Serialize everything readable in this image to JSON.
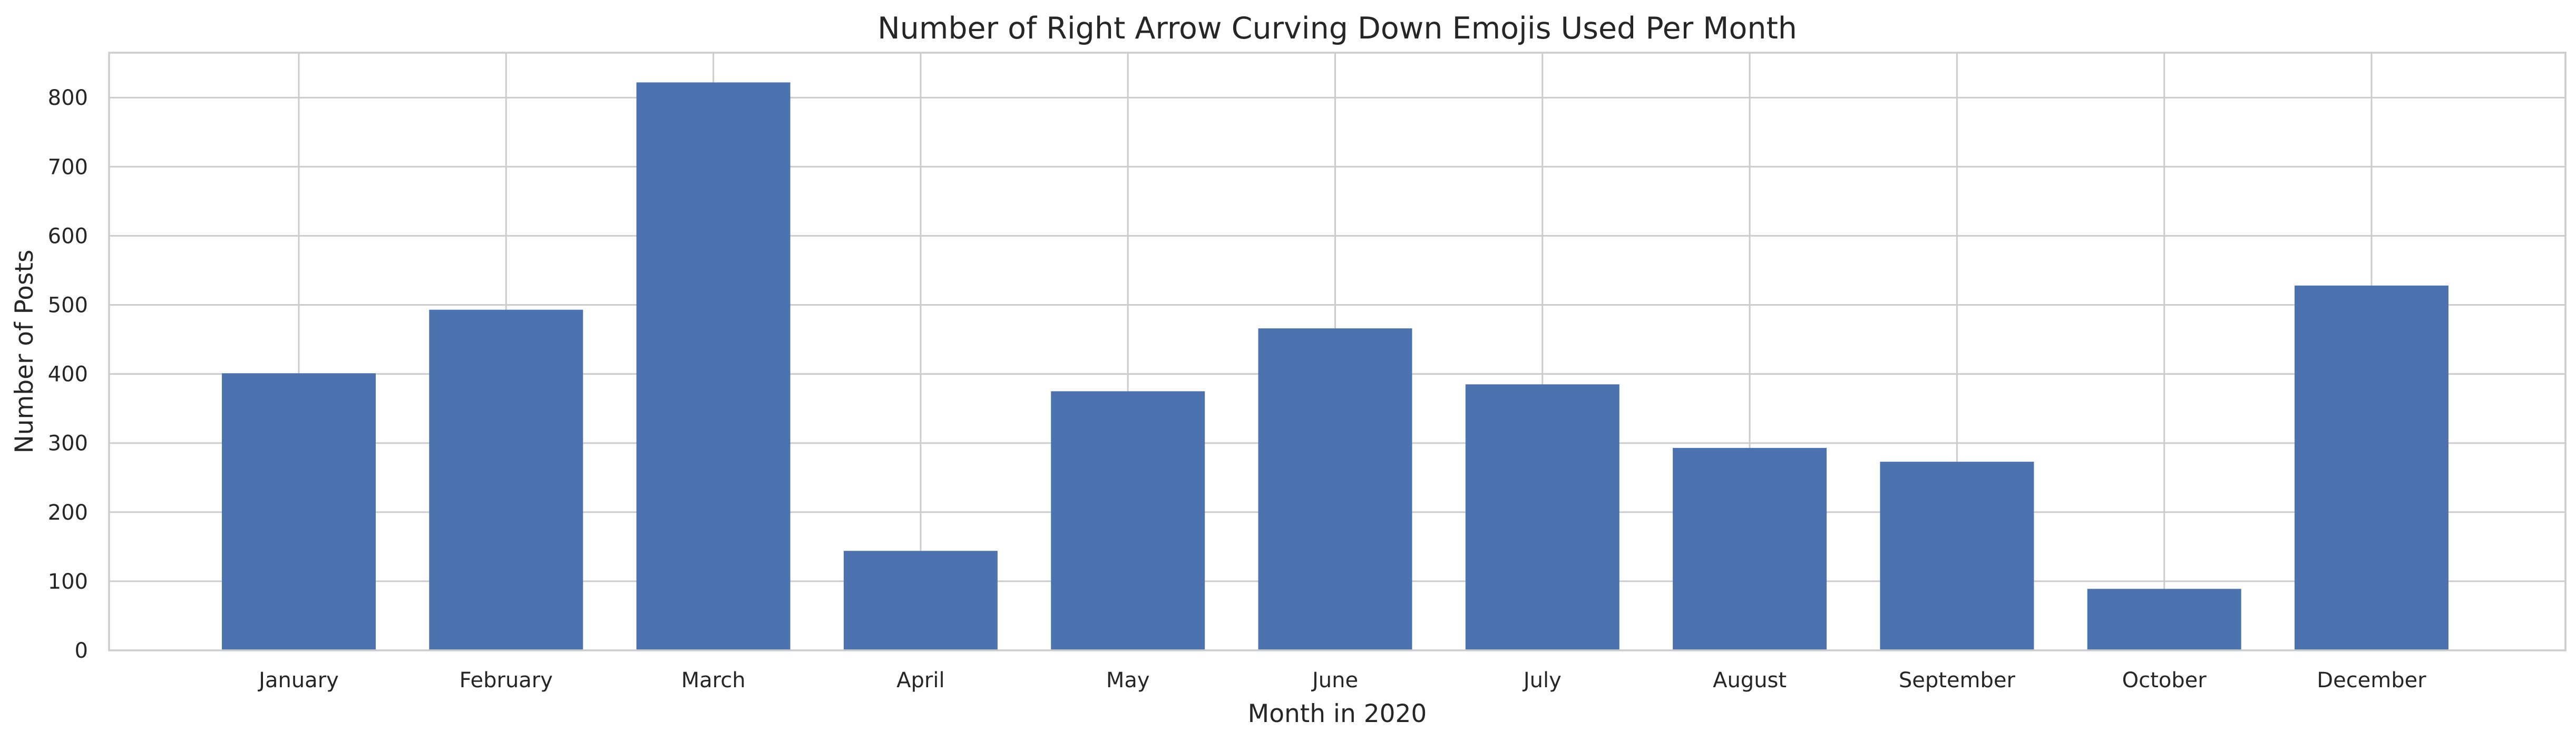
{
  "chart_data": {
    "type": "bar",
    "title": "Number of Right Arrow Curving Down Emojis Used Per Month",
    "xlabel": "Month in 2020",
    "ylabel": "Number of Posts",
    "categories": [
      "January",
      "February",
      "March",
      "April",
      "May",
      "June",
      "July",
      "August",
      "September",
      "October",
      "December"
    ],
    "values": [
      401,
      493,
      822,
      144,
      375,
      466,
      385,
      293,
      273,
      89,
      528
    ],
    "ylim": [
      0,
      865
    ],
    "yticks": [
      0,
      100,
      200,
      300,
      400,
      500,
      600,
      700,
      800
    ],
    "grid": true,
    "colors": {
      "bar": "#4c72b0",
      "grid": "#cccccc",
      "text": "#262626",
      "background": "#ffffff"
    }
  }
}
